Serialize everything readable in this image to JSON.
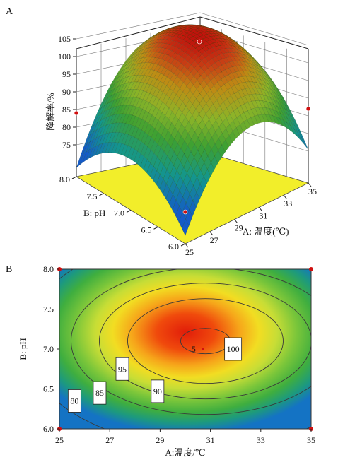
{
  "chart_data": [
    {
      "type": "surface",
      "panel_label": "A",
      "zlabel": "降解率/%",
      "ylabel": "B: pH",
      "xlabel": "A: 温度(℃)",
      "x_ticks": [
        "25",
        "27",
        "29",
        "31",
        "33",
        "35"
      ],
      "y_ticks": [
        "6.0",
        "6.5",
        "7.0",
        "7.5",
        "8.0"
      ],
      "z_ticks": [
        "75",
        "80",
        "85",
        "90",
        "95",
        "100",
        "105"
      ],
      "xlim": [
        25,
        35
      ],
      "ylim": [
        6.0,
        8.0
      ],
      "zlim": [
        75,
        105
      ],
      "model": {
        "peak_x": 30.8,
        "peak_y": 7.1,
        "peak_z": 101.5,
        "corner_values": [
          {
            "x": 25,
            "y": 6.0,
            "z": 72
          },
          {
            "x": 25,
            "y": 8.0,
            "z": 81
          },
          {
            "x": 35,
            "y": 6.0,
            "z": 84
          },
          {
            "x": 35,
            "y": 8.0,
            "z": 84
          }
        ]
      }
    },
    {
      "type": "contour",
      "panel_label": "B",
      "xlabel": "A:温度/℃",
      "ylabel": "B: pH",
      "x_ticks": [
        "25",
        "27",
        "29",
        "31",
        "33",
        "35"
      ],
      "y_ticks": [
        "6.0",
        "6.5",
        "7.0",
        "7.5",
        "8.0"
      ],
      "xlim": [
        25,
        35
      ],
      "ylim": [
        6.0,
        8.0
      ],
      "contour_levels": [
        80,
        85,
        90,
        95,
        100
      ],
      "contour_labels": [
        {
          "text": "80",
          "x": 25.6,
          "y": 6.35
        },
        {
          "text": "85",
          "x": 26.6,
          "y": 6.45
        },
        {
          "text": "90",
          "x": 28.9,
          "y": 6.47
        },
        {
          "text": "95",
          "x": 27.5,
          "y": 6.75
        },
        {
          "text": "100",
          "x": 31.9,
          "y": 7.0
        }
      ],
      "center_point": {
        "text": "5",
        "x": 30.7,
        "y": 7.0
      }
    }
  ]
}
